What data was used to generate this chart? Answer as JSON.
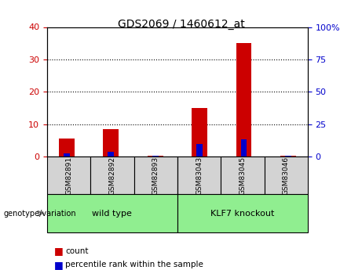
{
  "title": "GDS2069 / 1460612_at",
  "samples": [
    "GSM82891",
    "GSM82892",
    "GSM82893",
    "GSM83043",
    "GSM83045",
    "GSM83046"
  ],
  "count_values": [
    5.5,
    8.5,
    0.3,
    15,
    35,
    0.3
  ],
  "percentile_values": [
    2.5,
    3.5,
    0.5,
    10,
    13.5,
    0.5
  ],
  "groups": [
    {
      "label": "wild type",
      "indices": [
        0,
        1,
        2
      ],
      "color": "#90ee90"
    },
    {
      "label": "KLF7 knockout",
      "indices": [
        3,
        4,
        5
      ],
      "color": "#90ee90"
    }
  ],
  "group_separator": 2.5,
  "ylim_left": [
    0,
    40
  ],
  "ylim_right": [
    0,
    100
  ],
  "yticks_left": [
    0,
    10,
    20,
    30,
    40
  ],
  "yticks_right": [
    0,
    25,
    50,
    75,
    100
  ],
  "count_color": "#cc0000",
  "percentile_color": "#0000cc",
  "bar_width": 0.35,
  "label_area_color": "#d3d3d3",
  "group_label_color": "#90ee90",
  "genotype_label": "genotype/variation",
  "legend_count": "count",
  "legend_pct": "percentile rank within the sample",
  "tick_color_left": "#cc0000",
  "tick_color_right": "#0000cc",
  "background_color": "#ffffff",
  "dotted_line_color": "#000000"
}
